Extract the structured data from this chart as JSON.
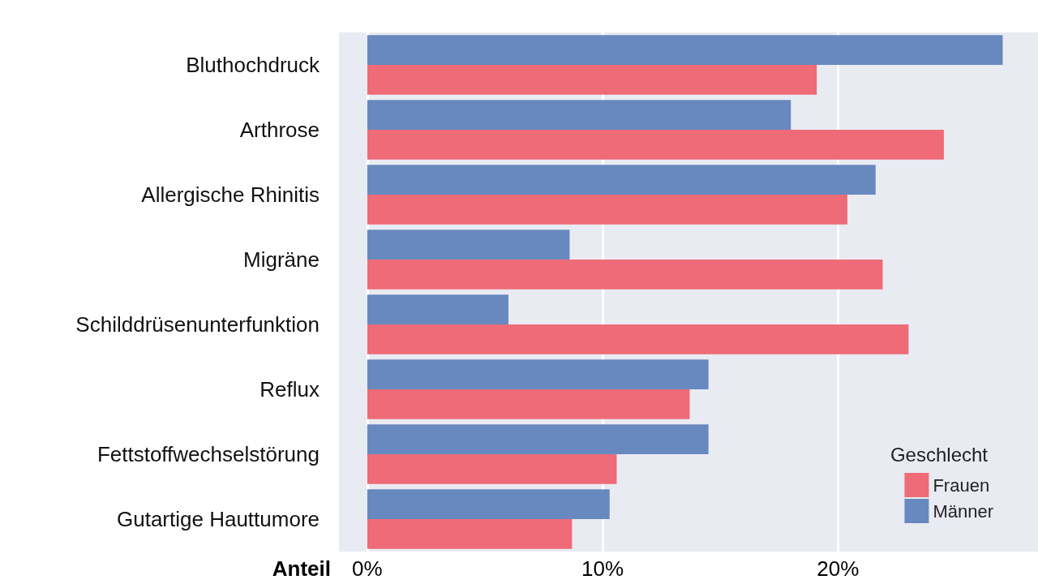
{
  "chart_data": {
    "type": "bar",
    "orientation": "horizontal",
    "xlabel": "Anteil",
    "legend_title": "Geschlecht",
    "legend": "bottom right",
    "grid": "x",
    "categories": [
      "Bluthochdruck",
      "Arthrose",
      "Allergische Rhinitis",
      "Migräne",
      "Schilddrüsenunterfunktion",
      "Reflux",
      "Fettstoffwechselstörung",
      "Gutartige Hauttumore"
    ],
    "series": [
      {
        "name": "Frauen",
        "color": "#ee6b77",
        "values": [
          19.1,
          24.5,
          20.4,
          21.9,
          23.0,
          13.7,
          10.6,
          8.7
        ]
      },
      {
        "name": "Männer",
        "color": "#6889bf",
        "values": [
          27.0,
          18.0,
          21.6,
          8.6,
          6.0,
          14.5,
          14.5,
          10.3
        ]
      }
    ],
    "xlim": [
      -1.2,
      28.5
    ],
    "xticks": [
      {
        "value": 0,
        "label": "0%"
      },
      {
        "value": 10,
        "label": "10%"
      },
      {
        "value": 20,
        "label": "20%"
      }
    ]
  }
}
